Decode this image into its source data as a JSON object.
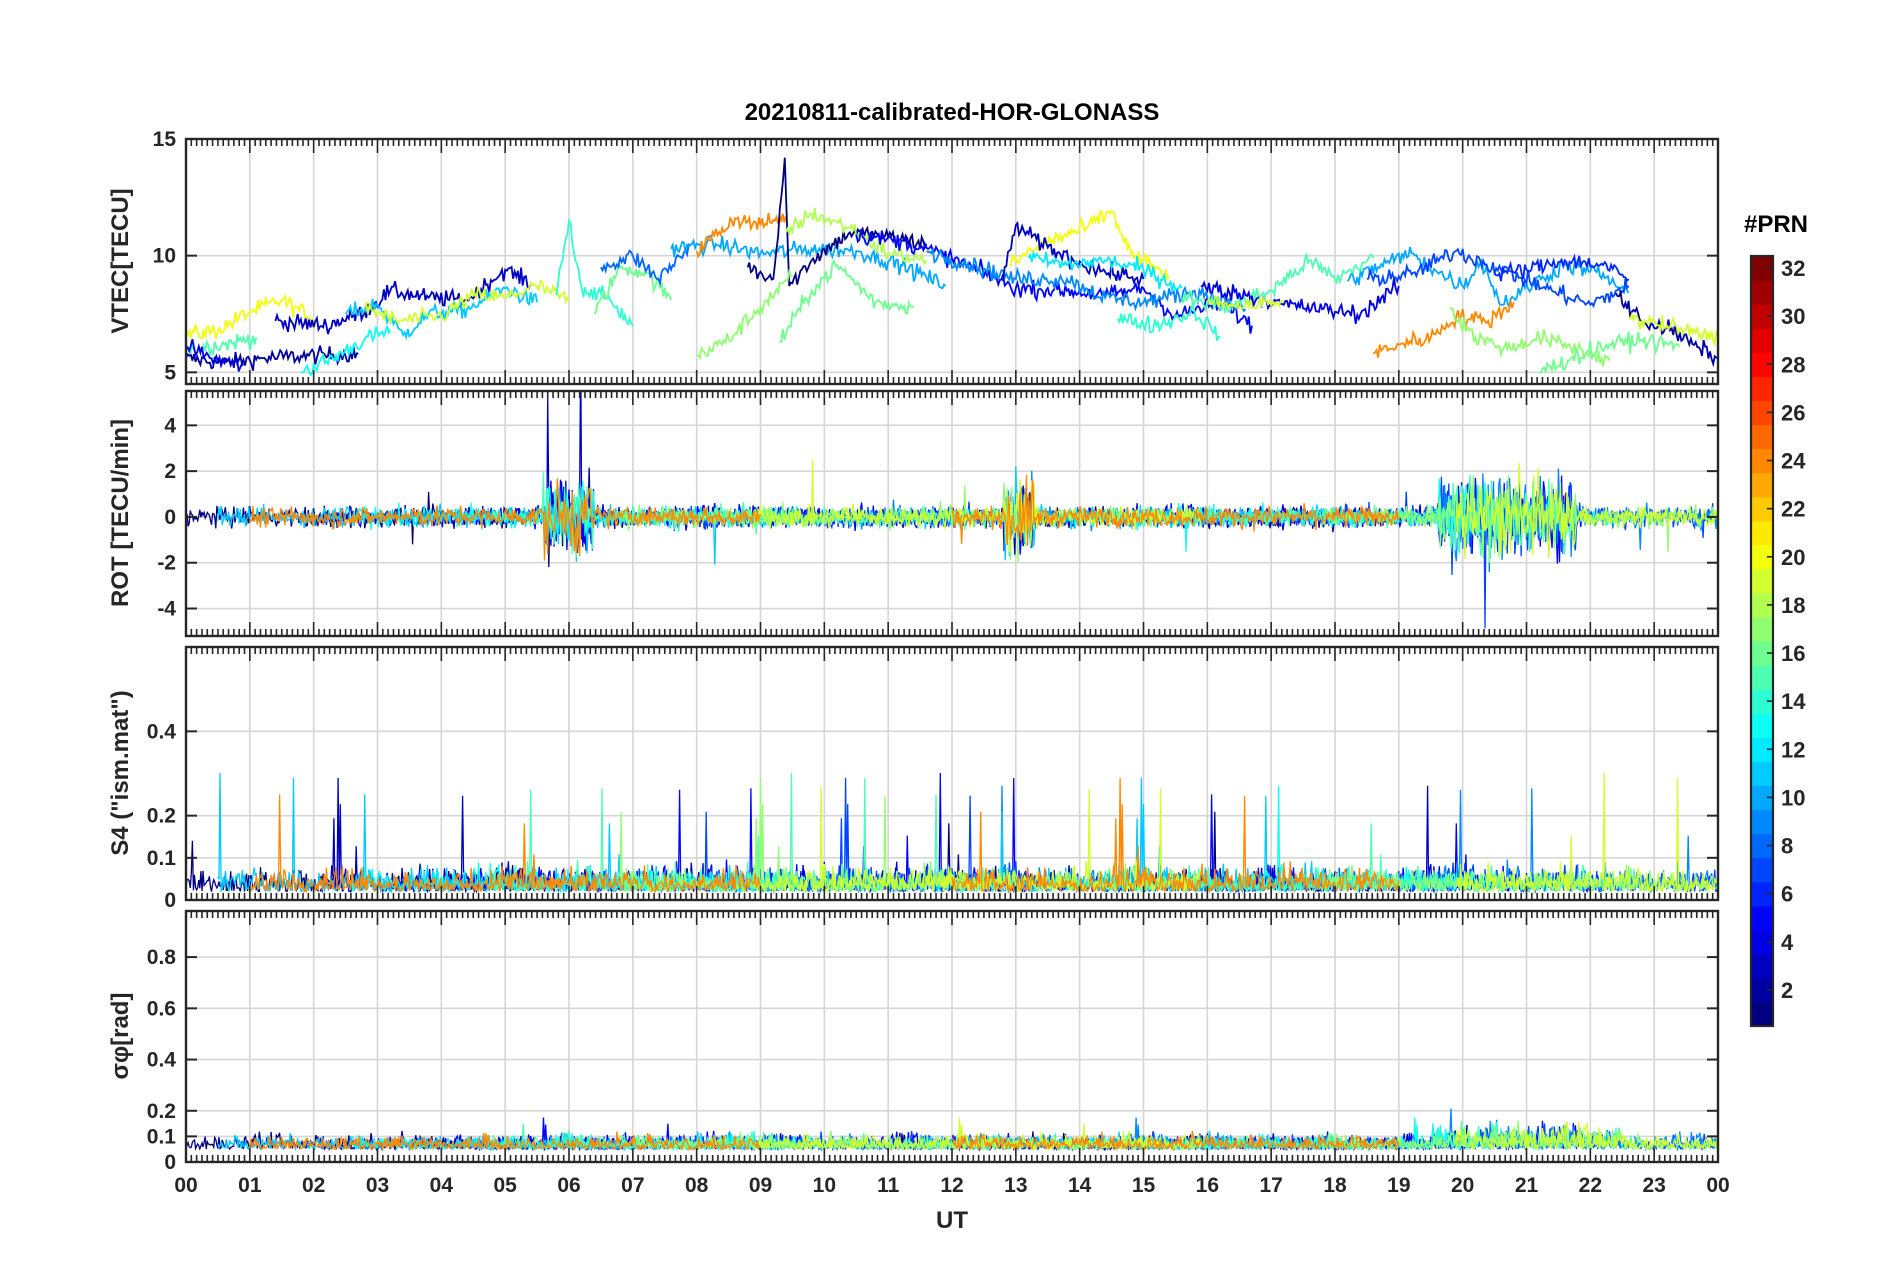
{
  "figure_title": "20210811-calibrated-HOR-GLONASS",
  "colorbar": {
    "title": "#PRN",
    "range": [
      1,
      32
    ],
    "ticks": [
      "2",
      "4",
      "6",
      "8",
      "10",
      "12",
      "14",
      "16",
      "18",
      "20",
      "22",
      "24",
      "26",
      "28",
      "30",
      "32"
    ],
    "colormap": "jet"
  },
  "chart_data": [
    {
      "type": "line",
      "title": "20210811-calibrated-HOR-GLONASS",
      "ylabel": "VTEC[TECU]",
      "xlabel": "",
      "xlim": [
        0,
        24
      ],
      "ylim": [
        4.5,
        15
      ],
      "yticks": [
        "5",
        "10",
        "15"
      ],
      "grid": true,
      "colored_by": "#PRN",
      "series": [
        {
          "prn": 2,
          "points": [
            [
              0.0,
              5.6
            ],
            [
              0.6,
              5.4
            ],
            [
              1.2,
              5.6
            ],
            [
              1.8,
              5.7
            ],
            [
              2.7,
              5.8
            ]
          ]
        },
        {
          "prn": 20,
          "points": [
            [
              0.0,
              6.6
            ],
            [
              0.5,
              6.8
            ],
            [
              1.0,
              7.6
            ],
            [
              1.5,
              8.1
            ],
            [
              2.0,
              7.3
            ]
          ]
        },
        {
          "prn": 15,
          "points": [
            [
              0.0,
              6.0
            ],
            [
              0.6,
              6.2
            ],
            [
              1.1,
              6.5
            ]
          ]
        },
        {
          "prn": 4,
          "points": [
            [
              0.0,
              6.1
            ],
            [
              0.4,
              5.6
            ],
            [
              0.9,
              5.3
            ]
          ]
        },
        {
          "prn": 3,
          "points": [
            [
              1.4,
              7.2
            ],
            [
              2.2,
              7.0
            ],
            [
              2.8,
              7.6
            ],
            [
              3.2,
              8.5
            ],
            [
              3.8,
              8.2
            ],
            [
              4.4,
              8.1
            ],
            [
              5.0,
              9.4
            ],
            [
              5.4,
              8.8
            ]
          ]
        },
        {
          "prn": 13,
          "points": [
            [
              1.8,
              5.0
            ],
            [
              2.3,
              5.6
            ],
            [
              2.8,
              6.4
            ],
            [
              3.2,
              6.8
            ]
          ]
        },
        {
          "prn": 11,
          "points": [
            [
              2.5,
              7.5
            ],
            [
              3.0,
              7.9
            ],
            [
              3.4,
              6.6
            ],
            [
              3.8,
              7.5
            ],
            [
              4.4,
              7.7
            ],
            [
              5.0,
              8.6
            ],
            [
              5.5,
              8.0
            ]
          ]
        },
        {
          "prn": 19,
          "points": [
            [
              2.8,
              7.8
            ],
            [
              3.3,
              7.2
            ],
            [
              4.0,
              7.4
            ],
            [
              4.5,
              8.3
            ],
            [
              5.0,
              8.2
            ],
            [
              5.5,
              8.7
            ],
            [
              6.0,
              8.1
            ]
          ]
        },
        {
          "prn": 14,
          "points": [
            [
              5.8,
              8.3
            ],
            [
              6.0,
              11.5
            ],
            [
              6.2,
              8.6
            ],
            [
              6.6,
              8.2
            ],
            [
              7.0,
              7.0
            ]
          ]
        },
        {
          "prn": 16,
          "points": [
            [
              6.4,
              7.5
            ],
            [
              6.8,
              9.5
            ],
            [
              7.2,
              9.3
            ],
            [
              7.6,
              8.1
            ]
          ]
        },
        {
          "prn": 8,
          "points": [
            [
              6.5,
              9.5
            ],
            [
              7.0,
              10.0
            ],
            [
              7.4,
              9.0
            ],
            [
              7.9,
              10.4
            ]
          ]
        },
        {
          "prn": 10,
          "points": [
            [
              7.6,
              10.3
            ],
            [
              8.3,
              10.5
            ],
            [
              9.0,
              10.1
            ],
            [
              9.8,
              10.3
            ],
            [
              10.5,
              10.2
            ],
            [
              11.2,
              9.6
            ],
            [
              11.9,
              8.7
            ]
          ]
        },
        {
          "prn": 24,
          "points": [
            [
              8.0,
              10.2
            ],
            [
              8.6,
              11.6
            ],
            [
              9.0,
              11.3
            ],
            [
              9.4,
              11.7
            ]
          ]
        },
        {
          "prn": 1,
          "points": [
            [
              8.8,
              9.5
            ],
            [
              9.2,
              9.0
            ],
            [
              9.38,
              14.2
            ],
            [
              9.45,
              8.7
            ],
            [
              9.8,
              9.8
            ],
            [
              10.4,
              11.0
            ],
            [
              11.0,
              10.8
            ],
            [
              11.6,
              10.5
            ]
          ]
        },
        {
          "prn": 17,
          "points": [
            [
              8.0,
              5.7
            ],
            [
              8.5,
              6.4
            ],
            [
              9.0,
              7.8
            ],
            [
              9.5,
              9.1
            ]
          ]
        },
        {
          "prn": 18,
          "points": [
            [
              9.4,
              11.0
            ],
            [
              9.8,
              11.8
            ],
            [
              10.4,
              11.2
            ],
            [
              11.0,
              10.1
            ],
            [
              11.6,
              9.8
            ]
          ]
        },
        {
          "prn": 16,
          "points": [
            [
              9.3,
              6.3
            ],
            [
              9.8,
              8.5
            ],
            [
              10.2,
              9.6
            ],
            [
              10.8,
              8.0
            ],
            [
              11.4,
              7.8
            ]
          ]
        },
        {
          "prn": 5,
          "points": [
            [
              10.5,
              10.9
            ],
            [
              11.2,
              10.6
            ],
            [
              11.8,
              10.1
            ],
            [
              12.4,
              9.4
            ],
            [
              13.0,
              8.6
            ],
            [
              13.8,
              8.5
            ],
            [
              14.4,
              8.3
            ],
            [
              15.0,
              8.6
            ],
            [
              15.5,
              7.4
            ],
            [
              16.2,
              8.0
            ],
            [
              16.7,
              7.0
            ]
          ]
        },
        {
          "prn": 9,
          "points": [
            [
              11.6,
              10.2
            ],
            [
              12.3,
              9.6
            ],
            [
              13.0,
              9.0
            ],
            [
              13.8,
              9.0
            ],
            [
              14.4,
              8.2
            ],
            [
              15.0,
              8.0
            ],
            [
              15.8,
              8.5
            ],
            [
              16.6,
              7.7
            ]
          ]
        },
        {
          "prn": 20,
          "points": [
            [
              12.9,
              9.6
            ],
            [
              13.4,
              10.5
            ],
            [
              14.1,
              11.2
            ],
            [
              14.5,
              11.9
            ],
            [
              14.8,
              10.1
            ],
            [
              15.4,
              9.1
            ]
          ]
        },
        {
          "prn": 3,
          "points": [
            [
              12.8,
              8.9
            ],
            [
              13.0,
              11.3
            ],
            [
              13.4,
              10.5
            ],
            [
              13.9,
              9.8
            ],
            [
              14.4,
              9.3
            ],
            [
              15.0,
              9.0
            ]
          ]
        },
        {
          "prn": 12,
          "points": [
            [
              13.2,
              9.9
            ],
            [
              13.8,
              9.6
            ],
            [
              14.4,
              9.8
            ],
            [
              15.0,
              9.4
            ],
            [
              15.6,
              8.6
            ]
          ]
        },
        {
          "prn": 14,
          "points": [
            [
              14.6,
              7.3
            ],
            [
              15.2,
              7.0
            ],
            [
              15.8,
              7.6
            ],
            [
              16.2,
              6.5
            ]
          ]
        },
        {
          "prn": 15,
          "points": [
            [
              15.6,
              8.2
            ],
            [
              16.3,
              7.8
            ],
            [
              17.0,
              8.5
            ],
            [
              17.6,
              9.8
            ],
            [
              18.0,
              9.0
            ],
            [
              18.6,
              9.9
            ]
          ]
        },
        {
          "prn": 4,
          "points": [
            [
              15.9,
              8.7
            ],
            [
              16.6,
              8.3
            ],
            [
              17.2,
              7.9
            ],
            [
              17.8,
              7.7
            ],
            [
              18.4,
              7.5
            ],
            [
              19.0,
              8.7
            ]
          ]
        },
        {
          "prn": 19,
          "points": [
            [
              16.0,
              8.0
            ],
            [
              16.6,
              7.9
            ],
            [
              17.2,
              8.0
            ]
          ]
        },
        {
          "prn": 10,
          "points": [
            [
              18.2,
              8.9
            ],
            [
              18.8,
              9.7
            ],
            [
              19.2,
              10.1
            ],
            [
              19.6,
              9.3
            ],
            [
              20.0,
              8.7
            ],
            [
              20.3,
              9.8
            ],
            [
              20.6,
              7.9
            ],
            [
              21.1,
              8.8
            ],
            [
              21.6,
              9.6
            ],
            [
              22.1,
              9.3
            ],
            [
              22.6,
              8.4
            ]
          ]
        },
        {
          "prn": 7,
          "points": [
            [
              18.5,
              9.0
            ],
            [
              19.2,
              9.2
            ],
            [
              19.9,
              10.2
            ],
            [
              20.6,
              9.4
            ],
            [
              21.4,
              8.5
            ],
            [
              22.0,
              7.9
            ],
            [
              22.6,
              8.7
            ]
          ]
        },
        {
          "prn": 24,
          "points": [
            [
              18.6,
              5.8
            ],
            [
              19.0,
              6.2
            ],
            [
              19.5,
              6.5
            ],
            [
              19.9,
              7.4
            ],
            [
              20.4,
              7.2
            ],
            [
              20.8,
              8.0
            ]
          ]
        },
        {
          "prn": 17,
          "points": [
            [
              19.8,
              7.7
            ],
            [
              20.2,
              6.5
            ],
            [
              20.7,
              6.0
            ],
            [
              21.2,
              6.5
            ],
            [
              21.8,
              6.0
            ],
            [
              22.3,
              5.5
            ]
          ]
        },
        {
          "prn": 6,
          "points": [
            [
              20.5,
              9.2
            ],
            [
              21.0,
              9.4
            ],
            [
              21.6,
              9.8
            ],
            [
              22.2,
              9.6
            ],
            [
              22.6,
              9.0
            ]
          ]
        },
        {
          "prn": 16,
          "points": [
            [
              21.2,
              5.0
            ],
            [
              21.7,
              5.6
            ],
            [
              22.3,
              6.2
            ],
            [
              22.8,
              6.4
            ],
            [
              23.4,
              6.1
            ]
          ]
        },
        {
          "prn": 2,
          "points": [
            [
              22.4,
              8.4
            ],
            [
              22.8,
              7.2
            ],
            [
              23.2,
              6.9
            ],
            [
              23.6,
              6.2
            ],
            [
              24.0,
              5.6
            ]
          ]
        },
        {
          "prn": 19,
          "points": [
            [
              22.6,
              7.3
            ],
            [
              23.2,
              7.0
            ],
            [
              23.6,
              6.7
            ],
            [
              24.0,
              6.5
            ]
          ]
        }
      ]
    },
    {
      "type": "line",
      "ylabel": "ROT [TECU/min]",
      "xlabel": "",
      "xlim": [
        0,
        24
      ],
      "ylim": [
        -5.2,
        5.5
      ],
      "yticks": [
        "-4",
        "-2",
        "0",
        "2",
        "4"
      ],
      "grid": true,
      "colored_by": "#PRN"
    },
    {
      "type": "line",
      "ylabel": "S4 (\"ism.mat\")",
      "xlabel": "",
      "xlim": [
        0,
        24
      ],
      "ylim": [
        0,
        0.6
      ],
      "yticks": [
        "0",
        "0.1",
        "0.2",
        "0.4"
      ],
      "grid": true,
      "colored_by": "#PRN"
    },
    {
      "type": "line",
      "ylabel": "σφ[rad]",
      "xlabel": "UT",
      "xlim": [
        0,
        24
      ],
      "ylim": [
        0,
        0.98
      ],
      "yticks": [
        "0",
        "0.1",
        "0.2",
        "0.4",
        "0.6",
        "0.8"
      ],
      "xticks": [
        "00",
        "01",
        "02",
        "03",
        "04",
        "05",
        "06",
        "07",
        "08",
        "09",
        "10",
        "11",
        "12",
        "13",
        "14",
        "15",
        "16",
        "17",
        "18",
        "19",
        "20",
        "21",
        "22",
        "23",
        "00"
      ],
      "grid": true,
      "colored_by": "#PRN"
    }
  ]
}
